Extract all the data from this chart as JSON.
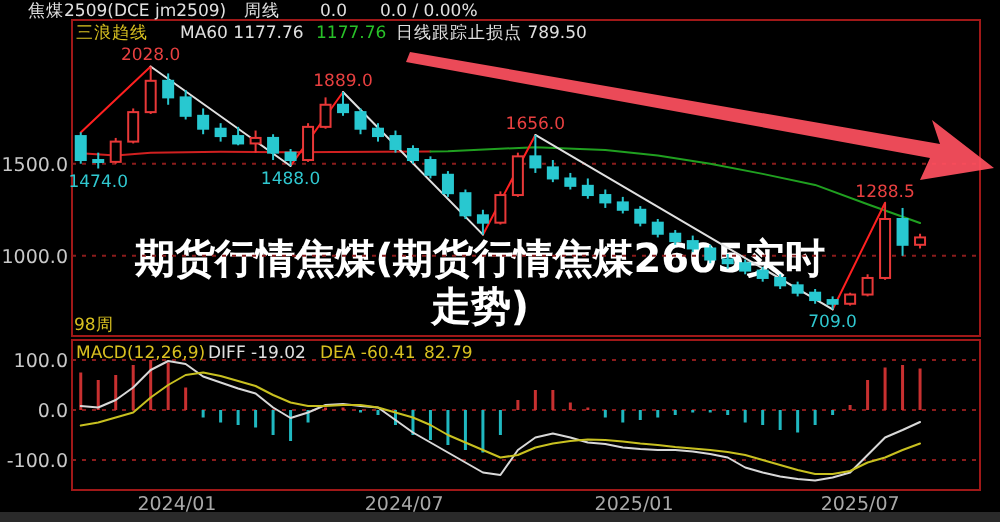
{
  "chart_data": [
    {
      "type": "candlestick",
      "title": "期货行情焦煤(期货行情焦煤2605实时走势)",
      "x": [
        "2023-10-16",
        "2023-10-30",
        "2023-11-13",
        "2023-11-27",
        "2023-12-11",
        "2023-12-25",
        "2024-01-08",
        "2024-01-22",
        "2024-02-05",
        "2024-02-19",
        "2024-03-04",
        "2024-03-18",
        "2024-04-01",
        "2024-04-15",
        "2024-04-29",
        "2024-05-13",
        "2024-05-27",
        "2024-06-10",
        "2024-06-24",
        "2024-07-08",
        "2024-07-22",
        "2024-08-05",
        "2024-08-19",
        "2024-09-02",
        "2024-09-16",
        "2024-09-30",
        "2024-10-14",
        "2024-10-28",
        "2024-11-11",
        "2024-11-25",
        "2024-12-09",
        "2024-12-23",
        "2025-01-06",
        "2025-01-20",
        "2025-02-03",
        "2025-02-17",
        "2025-03-03",
        "2025-03-17",
        "2025-03-31",
        "2025-04-14",
        "2025-04-28",
        "2025-05-12",
        "2025-05-26",
        "2025-06-09",
        "2025-06-23",
        "2025-07-07",
        "2025-07-21",
        "2025-08-04",
        "2025-08-18"
      ],
      "ohlc": [
        [
          1650,
          1670,
          1500,
          1520
        ],
        [
          1520,
          1560,
          1474,
          1510
        ],
        [
          1510,
          1640,
          1500,
          1620
        ],
        [
          1620,
          1800,
          1610,
          1780
        ],
        [
          1780,
          2028,
          1770,
          1950
        ],
        [
          1950,
          1990,
          1820,
          1860
        ],
        [
          1860,
          1900,
          1740,
          1760
        ],
        [
          1760,
          1800,
          1660,
          1690
        ],
        [
          1690,
          1720,
          1620,
          1650
        ],
        [
          1650,
          1700,
          1600,
          1610
        ],
        [
          1610,
          1680,
          1560,
          1640
        ],
        [
          1640,
          1660,
          1520,
          1560
        ],
        [
          1560,
          1580,
          1488,
          1520
        ],
        [
          1520,
          1720,
          1510,
          1700
        ],
        [
          1700,
          1860,
          1690,
          1820
        ],
        [
          1820,
          1889,
          1760,
          1780
        ],
        [
          1780,
          1800,
          1660,
          1690
        ],
        [
          1690,
          1720,
          1620,
          1650
        ],
        [
          1650,
          1680,
          1560,
          1580
        ],
        [
          1580,
          1600,
          1500,
          1520
        ],
        [
          1520,
          1540,
          1420,
          1440
        ],
        [
          1440,
          1460,
          1320,
          1340
        ],
        [
          1340,
          1360,
          1200,
          1220
        ],
        [
          1220,
          1250,
          1115,
          1180
        ],
        [
          1180,
          1350,
          1170,
          1330
        ],
        [
          1330,
          1560,
          1320,
          1540
        ],
        [
          1540,
          1656,
          1450,
          1480
        ],
        [
          1480,
          1520,
          1400,
          1420
        ],
        [
          1420,
          1450,
          1360,
          1380
        ],
        [
          1380,
          1420,
          1310,
          1330
        ],
        [
          1330,
          1360,
          1260,
          1290
        ],
        [
          1290,
          1320,
          1230,
          1250
        ],
        [
          1250,
          1270,
          1160,
          1180
        ],
        [
          1180,
          1200,
          1100,
          1120
        ],
        [
          1120,
          1140,
          1060,
          1080
        ],
        [
          1080,
          1110,
          1020,
          1040
        ],
        [
          1040,
          1060,
          960,
          980
        ],
        [
          980,
          1010,
          930,
          960
        ],
        [
          960,
          980,
          900,
          920
        ],
        [
          920,
          940,
          860,
          880
        ],
        [
          880,
          900,
          820,
          840
        ],
        [
          840,
          860,
          780,
          800
        ],
        [
          800,
          820,
          740,
          760
        ],
        [
          760,
          780,
          709,
          740
        ],
        [
          740,
          800,
          730,
          790
        ],
        [
          790,
          900,
          780,
          880
        ],
        [
          880,
          1288.5,
          870,
          1200
        ],
        [
          1200,
          1260,
          1000,
          1060
        ],
        [
          1060,
          1120,
          1040,
          1100
        ]
      ],
      "series": [
        {
          "type": "line",
          "color": "#d02020",
          "x": [
            "2023-10-16",
            "2023-11-13",
            "2023-12-11",
            "2024-02-05",
            "2024-04-01",
            "2024-06-10",
            "2024-07-22"
          ],
          "values": [
            1557,
            1545,
            1560,
            1565,
            1562,
            1565,
            1566
          ]
        },
        {
          "type": "line",
          "color": "#20a020",
          "x": [
            "2024-07-22",
            "2024-08-05",
            "2024-10-14",
            "2024-12-09",
            "2025-01-20",
            "2025-03-03",
            "2025-04-14",
            "2025-05-26",
            "2025-07-07",
            "2025-08-18"
          ],
          "values": [
            1566,
            1568,
            1590,
            1575,
            1545,
            1500,
            1445,
            1385,
            1280,
            1178
          ]
        },
        {
          "type": "line",
          "color": "#ff2020",
          "x": [
            "2023-10-16",
            "2023-12-11",
            "2024-02-01",
            "2024-04-01",
            "2024-05-13",
            "2024-07-01",
            "2024-09-02",
            "2024-10-14",
            "2025-01-01",
            "2025-06-09",
            "2025-07-21"
          ],
          "values": [
            1670,
            2028,
            null,
            1488,
            1889,
            null,
            1115,
            1656,
            null,
            709,
            1288.5
          ]
        },
        {
          "type": "line",
          "color": "#e0e0e0",
          "x": [
            "2023-12-11",
            "2024-04-01",
            "2024-04-20",
            "2024-05-13",
            "2024-09-02",
            "2024-09-20",
            "2024-10-14",
            "2025-06-09"
          ],
          "values": [
            2028,
            1488,
            null,
            1889,
            1115,
            null,
            1656,
            709
          ]
        }
      ],
      "annotations": [
        "焦煤2509(DCE jm2509)",
        "周线",
        "0.0",
        "0.0 / 0.00%",
        "三浪趋线",
        "MA60 1177.76",
        "1177.76",
        "日线跟踪止损点 789.50",
        "98周",
        {
          "text": "2028.0",
          "x": "2023-12-11",
          "y": 2028
        },
        {
          "text": "1474.0",
          "x": "2023-10-30",
          "y": 1474
        },
        {
          "text": "1488.0",
          "x": "2024-04-01",
          "y": 1488
        },
        {
          "text": "1889.0",
          "x": "2024-05-13",
          "y": 1889
        },
        {
          "text": "1656.0",
          "x": "2024-10-14",
          "y": 1656
        },
        {
          "text": "709.0",
          "x": "2025-06-09",
          "y": 709
        },
        {
          "text": "1288.5",
          "x": "2025-07-21",
          "y": 1288.5
        }
      ],
      "xlim": [
        "2023-10-09",
        "2025-10-05"
      ],
      "ylim": [
        565,
        2280
      ],
      "yticks": [
        {
          "value": 1500,
          "label": "1500.0"
        },
        {
          "value": 1000,
          "label": "1000.0"
        }
      ],
      "grid": "y",
      "tick_labels": "y"
    },
    {
      "type": "bar",
      "x": [
        "2023-10-16",
        "2023-10-30",
        "2023-11-13",
        "2023-11-27",
        "2023-12-11",
        "2023-12-25",
        "2024-01-08",
        "2024-01-22",
        "2024-02-05",
        "2024-02-19",
        "2024-03-04",
        "2024-03-18",
        "2024-04-01",
        "2024-04-15",
        "2024-04-29",
        "2024-05-13",
        "2024-05-27",
        "2024-06-10",
        "2024-06-24",
        "2024-07-08",
        "2024-07-22",
        "2024-08-05",
        "2024-08-19",
        "2024-09-02",
        "2024-09-16",
        "2024-09-30",
        "2024-10-14",
        "2024-10-28",
        "2024-11-11",
        "2024-11-25",
        "2024-12-09",
        "2024-12-23",
        "2025-01-06",
        "2025-01-20",
        "2025-02-03",
        "2025-02-17",
        "2025-03-03",
        "2025-03-17",
        "2025-03-31",
        "2025-04-14",
        "2025-04-28",
        "2025-05-12",
        "2025-05-26",
        "2025-06-09",
        "2025-06-23",
        "2025-07-07",
        "2025-07-21",
        "2025-08-04",
        "2025-08-18"
      ],
      "series": [
        {
          "type": "bar",
          "values": [
            75,
            60,
            70,
            90,
            100,
            95,
            45,
            -15,
            -25,
            -30,
            -35,
            -50,
            -62,
            -25,
            5,
            5,
            -5,
            -10,
            -30,
            -50,
            -60,
            -70,
            -80,
            -85,
            -50,
            20,
            40,
            40,
            15,
            5,
            -15,
            -25,
            -20,
            -15,
            -10,
            -5,
            -5,
            -10,
            -25,
            -30,
            -40,
            -45,
            -30,
            -10,
            10,
            60,
            85,
            90,
            83
          ],
          "colors": [
            "#c83030",
            "#c83030",
            "#c83030",
            "#c83030",
            "#c83030",
            "#c83030",
            "#c83030",
            "#20b8c0",
            "#20b8c0",
            "#20b8c0",
            "#20b8c0",
            "#20b8c0",
            "#20b8c0",
            "#20b8c0",
            "#c83030",
            "#c83030",
            "#20b8c0",
            "#20b8c0",
            "#20b8c0",
            "#20b8c0",
            "#20b8c0",
            "#20b8c0",
            "#20b8c0",
            "#20b8c0",
            "#20b8c0",
            "#c83030",
            "#c83030",
            "#c83030",
            "#c83030",
            "#c83030",
            "#20b8c0",
            "#20b8c0",
            "#20b8c0",
            "#20b8c0",
            "#20b8c0",
            "#20b8c0",
            "#20b8c0",
            "#20b8c0",
            "#20b8c0",
            "#20b8c0",
            "#20b8c0",
            "#20b8c0",
            "#20b8c0",
            "#20b8c0",
            "#c83030",
            "#c83030",
            "#c83030",
            "#c83030",
            "#c83030"
          ]
        },
        {
          "type": "line",
          "color": "#d8d8d8",
          "values": [
            8,
            5,
            20,
            45,
            80,
            98,
            92,
            67,
            55,
            43,
            33,
            5,
            -16,
            -5,
            10,
            12,
            8,
            5,
            -20,
            -45,
            -65,
            -85,
            -105,
            -125,
            -130,
            -80,
            -55,
            -47,
            -55,
            -65,
            -68,
            -75,
            -78,
            -80,
            -80,
            -83,
            -88,
            -95,
            -115,
            -125,
            -133,
            -138,
            -141,
            -135,
            -125,
            -90,
            -55,
            -40,
            -24
          ]
        },
        {
          "type": "line",
          "color": "#c8c020",
          "values": [
            -31,
            -25,
            -15,
            -5,
            25,
            50,
            70,
            75,
            68,
            58,
            48,
            30,
            15,
            8,
            8,
            10,
            10,
            5,
            -5,
            -15,
            -30,
            -50,
            -65,
            -80,
            -95,
            -90,
            -75,
            -67,
            -62,
            -59,
            -60,
            -63,
            -67,
            -70,
            -74,
            -77,
            -80,
            -84,
            -90,
            -100,
            -110,
            -120,
            -128,
            -128,
            -122,
            -105,
            -95,
            -80,
            -67
          ]
        }
      ],
      "annotations": [
        "MACD(12,26,9)",
        "DIFF -19.02",
        "DEA -60.41",
        "82.79"
      ],
      "xlim": [
        "2023-10-09",
        "2025-10-05"
      ],
      "ylim": [
        -160,
        140
      ],
      "yticks": [
        {
          "value": 100,
          "label": "100.0"
        },
        {
          "value": 0,
          "label": "0.0"
        },
        {
          "value": -100,
          "label": "-100.0"
        }
      ],
      "xticks": [
        {
          "value": "2024-01-01",
          "label": "2024/01"
        },
        {
          "value": "2024-07-01",
          "label": "2024/07"
        },
        {
          "value": "2025-01-01",
          "label": "2025/01"
        },
        {
          "value": "2025-07-01",
          "label": "2025/07"
        }
      ],
      "grid": "y"
    }
  ]
}
